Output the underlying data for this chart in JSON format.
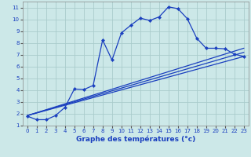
{
  "background_color": "#cce8e8",
  "grid_color": "#aacccc",
  "line_color": "#1a3fbf",
  "xlim": [
    -0.5,
    23.5
  ],
  "ylim": [
    1,
    11.5
  ],
  "xticks": [
    0,
    1,
    2,
    3,
    4,
    5,
    6,
    7,
    8,
    9,
    10,
    11,
    12,
    13,
    14,
    15,
    16,
    17,
    18,
    19,
    20,
    21,
    22,
    23
  ],
  "yticks": [
    1,
    2,
    3,
    4,
    5,
    6,
    7,
    8,
    9,
    10,
    11
  ],
  "curve1_x": [
    0,
    1,
    2,
    3,
    4,
    5,
    6,
    7,
    8,
    9,
    10,
    11,
    12,
    13,
    14,
    15,
    16,
    17,
    18,
    19,
    20,
    21,
    22,
    23
  ],
  "curve1_y": [
    1.8,
    1.5,
    1.5,
    1.85,
    2.55,
    4.1,
    4.05,
    4.4,
    8.25,
    6.55,
    8.85,
    9.5,
    10.1,
    9.9,
    10.2,
    11.05,
    10.9,
    10.05,
    8.4,
    7.55,
    7.55,
    7.5,
    7.05,
    6.85
  ],
  "curve2_x": [
    0,
    23
  ],
  "curve2_y": [
    1.85,
    7.55
  ],
  "curve3_x": [
    0,
    23
  ],
  "curve3_y": [
    1.85,
    6.85
  ],
  "curve4_x": [
    0,
    23
  ],
  "curve4_y": [
    1.85,
    7.2
  ],
  "xlabel": "Graphe des températures (°c)",
  "marker": "D",
  "marker_size": 2.2,
  "line_width": 0.9,
  "xlabel_fontsize": 6.5,
  "tick_fontsize": 5.0
}
